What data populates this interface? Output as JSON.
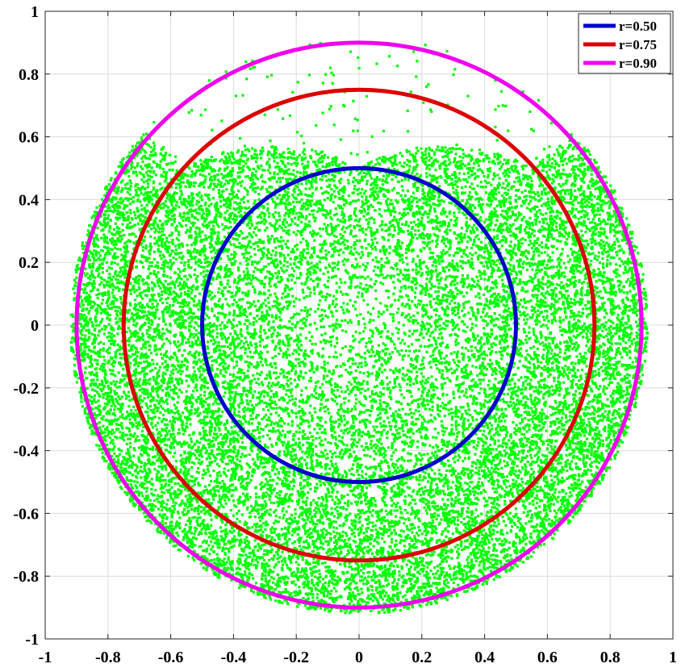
{
  "chart_data": {
    "type": "scatter",
    "title": "",
    "xlabel": "",
    "ylabel": "",
    "xlim": [
      -1,
      1
    ],
    "ylim": [
      -1,
      1
    ],
    "grid": true,
    "aspect": "equal",
    "x_ticks": [
      -1,
      -0.8,
      -0.6,
      -0.4,
      -0.2,
      0,
      0.2,
      0.4,
      0.6,
      0.8,
      1
    ],
    "y_ticks": [
      -1,
      -0.8,
      -0.6,
      -0.4,
      -0.2,
      0,
      0.2,
      0.4,
      0.6,
      0.8,
      1
    ],
    "x_tick_labels": [
      "-1",
      "-0.8",
      "-0.6",
      "-0.4",
      "-0.2",
      "0",
      "0.2",
      "0.4",
      "0.6",
      "0.8",
      "1"
    ],
    "y_tick_labels": [
      "-1",
      "-0.8",
      "-0.6",
      "-0.4",
      "-0.2",
      "0",
      "0.2",
      "0.4",
      "0.6",
      "0.8",
      "1"
    ],
    "scatter": {
      "color": "#00ff00",
      "marker": "square",
      "approx_count": 20000,
      "distribution": {
        "max_radius": 0.92,
        "min_radius": 0.0,
        "notch": {
          "direction": "top",
          "center_angle_deg": 90,
          "half_width_deg": 48,
          "excluded_radius_range": [
            0.5,
            0.92
          ]
        }
      }
    },
    "circles": [
      {
        "label": "r=0.50",
        "radius": 0.5,
        "color": "#0000cc"
      },
      {
        "label": "r=0.75",
        "radius": 0.75,
        "color": "#dd0000"
      },
      {
        "label": "r=0.90",
        "radius": 0.9,
        "color": "#ee00ee"
      }
    ],
    "legend": {
      "position": "top-right"
    }
  }
}
